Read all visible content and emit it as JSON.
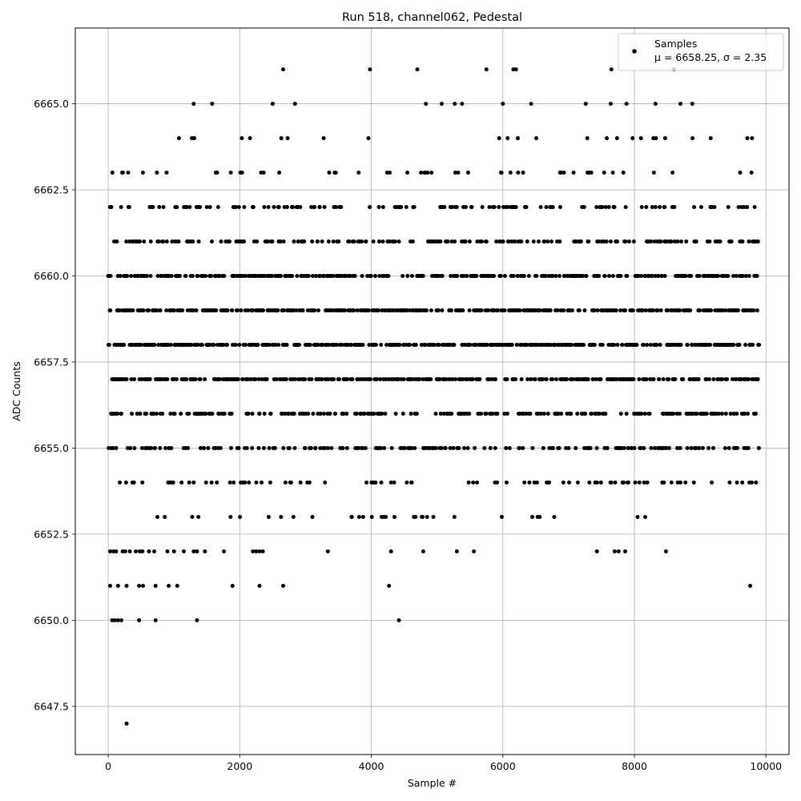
{
  "chart_data": {
    "type": "scatter",
    "title": "Run 518, channel062, Pedestal",
    "xlabel": "Sample #",
    "ylabel": "ADC Counts",
    "xlim": [
      -500,
      10350
    ],
    "ylim": [
      6646.1,
      6667.2
    ],
    "xticks": [
      0,
      2000,
      4000,
      6000,
      8000,
      10000
    ],
    "xtick_labels": [
      "0",
      "2000",
      "4000",
      "6000",
      "8000",
      "10000"
    ],
    "yticks": [
      6647.5,
      6650.0,
      6652.5,
      6655.0,
      6657.5,
      6660.0,
      6662.5,
      6665.0
    ],
    "ytick_labels": [
      "6647.5",
      "6650.0",
      "6652.5",
      "6655.0",
      "6657.5",
      "6660.0",
      "6662.5",
      "6665.0"
    ],
    "grid": true,
    "legend_position": "top-right",
    "series": [
      {
        "name": "Samples",
        "stats_label": "μ = 6658.25, σ = 2.35",
        "color": "#000000",
        "n_samples": 9900,
        "distribution": {
          "mean": 6658.25,
          "std": 2.35
        },
        "sparse_points": [
          [
            280,
            6647
          ],
          [
            60,
            6650
          ],
          [
            100,
            6650
          ],
          [
            150,
            6650
          ],
          [
            200,
            6650
          ],
          [
            470,
            6650
          ],
          [
            720,
            6650
          ],
          [
            1350,
            6650
          ],
          [
            4420,
            6650
          ],
          [
            30,
            6651
          ],
          [
            150,
            6651
          ],
          [
            280,
            6651
          ],
          [
            470,
            6651
          ],
          [
            530,
            6651
          ],
          [
            720,
            6651
          ],
          [
            920,
            6651
          ],
          [
            1050,
            6651
          ],
          [
            1890,
            6651
          ],
          [
            2300,
            6651
          ],
          [
            2660,
            6651
          ],
          [
            4270,
            6651
          ],
          [
            9760,
            6651
          ],
          [
            30,
            6652
          ],
          [
            80,
            6652
          ],
          [
            120,
            6652
          ],
          [
            220,
            6652
          ],
          [
            260,
            6652
          ],
          [
            330,
            6652
          ],
          [
            420,
            6652
          ],
          [
            480,
            6652
          ],
          [
            520,
            6652
          ],
          [
            620,
            6652
          ],
          [
            700,
            6652
          ],
          [
            900,
            6652
          ],
          [
            1000,
            6652
          ],
          [
            1150,
            6652
          ],
          [
            1300,
            6652
          ],
          [
            1350,
            6652
          ],
          [
            1470,
            6652
          ],
          [
            1760,
            6652
          ],
          [
            2200,
            6652
          ],
          [
            2250,
            6652
          ],
          [
            2300,
            6652
          ],
          [
            2350,
            6652
          ],
          [
            3340,
            6652
          ],
          [
            4300,
            6652
          ],
          [
            4790,
            6652
          ],
          [
            5300,
            6652
          ],
          [
            5560,
            6652
          ],
          [
            7430,
            6652
          ],
          [
            7700,
            6652
          ],
          [
            7760,
            6652
          ],
          [
            7860,
            6652
          ],
          [
            8480,
            6652
          ],
          [
            740,
            6663
          ],
          [
            1300,
            6665
          ],
          [
            1580,
            6665
          ],
          [
            2500,
            6665
          ],
          [
            2840,
            6665
          ],
          [
            4830,
            6665
          ],
          [
            5070,
            6665
          ],
          [
            5270,
            6665
          ],
          [
            5380,
            6665
          ],
          [
            6000,
            6665
          ],
          [
            6430,
            6665
          ],
          [
            7260,
            6665
          ],
          [
            7640,
            6665
          ],
          [
            7880,
            6665
          ],
          [
            8320,
            6665
          ],
          [
            8700,
            6665
          ],
          [
            8880,
            6665
          ],
          [
            2660,
            6666
          ],
          [
            3980,
            6666
          ],
          [
            4700,
            6666
          ],
          [
            5750,
            6666
          ],
          [
            6160,
            6666
          ],
          [
            6200,
            6666
          ],
          [
            7650,
            6666
          ],
          [
            8600,
            6666
          ]
        ]
      }
    ]
  }
}
